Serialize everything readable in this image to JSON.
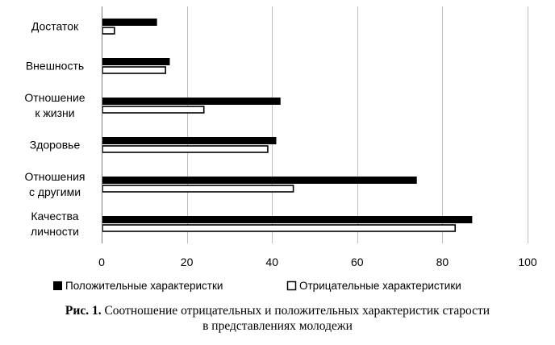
{
  "chart_data": {
    "type": "bar",
    "orientation": "horizontal",
    "categories": [
      [
        "Достаток"
      ],
      [
        "Внешность"
      ],
      [
        "Отношение",
        "к жизни"
      ],
      [
        "Здоровье"
      ],
      [
        "Отношения",
        "с другими"
      ],
      [
        "Качества",
        "личности"
      ]
    ],
    "series": [
      {
        "name": "Положительные характеристки",
        "values": [
          13,
          16,
          42,
          41,
          74,
          87
        ],
        "color": "#000000",
        "fill": "solid"
      },
      {
        "name": "Отрицательные характеристики",
        "values": [
          3,
          15,
          24,
          39,
          45,
          83
        ],
        "color": "#ffffff",
        "fill": "outline"
      }
    ],
    "xlim": [
      0,
      100
    ],
    "xticks": [
      0,
      20,
      40,
      60,
      80,
      100
    ],
    "grid": true,
    "legend": "bottom"
  },
  "caption": {
    "label": "Рис. 1.",
    "text": " Соотношение отрицательных и положительных характеристик старости",
    "line2": "в представлениях молодежи"
  }
}
